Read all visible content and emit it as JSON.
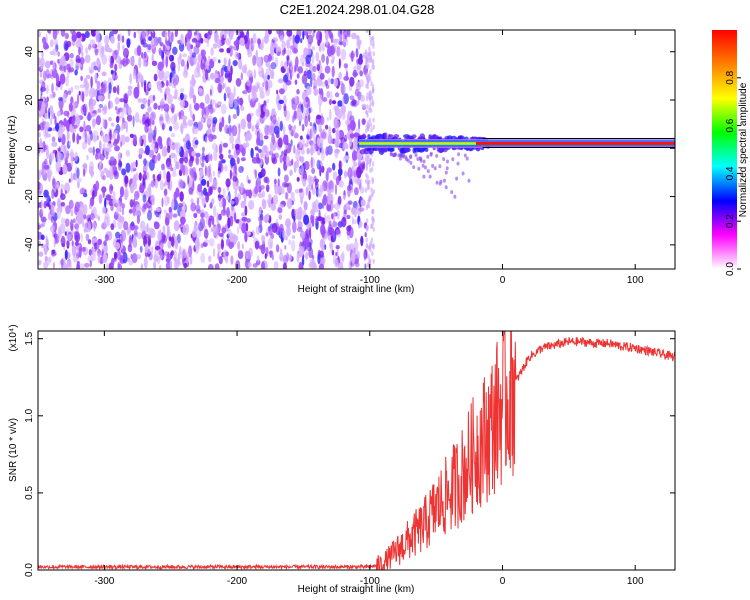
{
  "title": "C2E1.2024.298.01.04.G28",
  "chart_data": [
    {
      "type": "heatmap",
      "xlabel": "Height of straight line (km)",
      "ylabel": "Frequency (Hz)",
      "xlim": [
        -350,
        130
      ],
      "ylim": [
        -50,
        49
      ],
      "x_ticks": [
        -300,
        -200,
        -100,
        0,
        100
      ],
      "y_ticks": [
        -40,
        -20,
        0,
        20,
        40
      ],
      "colorbar": {
        "label": "Normalized spectral amplitude",
        "ticks": [
          0.0,
          0.2,
          0.4,
          0.6,
          0.8
        ],
        "range": [
          0.0,
          1.0
        ],
        "colors": [
          "#ffffff",
          "#ff00ff",
          "#0000ff",
          "#00ffff",
          "#00ff00",
          "#ffff00",
          "#ff8000",
          "#ff0000"
        ]
      },
      "features": {
        "noise_region_x": [
          -350,
          -103
        ],
        "carrier_start_x": -108,
        "carrier_frequency_hz": 2,
        "carrier_end_x": 130
      }
    },
    {
      "type": "line",
      "xlabel": "Height of straight line (km)",
      "ylabel": "SNR (10 * v/v)",
      "scale_label": "(x10⁴)",
      "xlim": [
        -350,
        130
      ],
      "ylim": [
        0,
        1.55
      ],
      "x_ticks": [
        -300,
        -200,
        -100,
        0,
        100
      ],
      "y_ticks": [
        0.0,
        0.5,
        1.0,
        1.5
      ],
      "color": "#ee3333",
      "x": [
        -350,
        -300,
        -250,
        -200,
        -150,
        -100,
        -90,
        -80,
        -70,
        -60,
        -50,
        -40,
        -30,
        -20,
        -10,
        0,
        10,
        20,
        30,
        40,
        50,
        60,
        70,
        80,
        90,
        100,
        110,
        120,
        130
      ],
      "y": [
        0.02,
        0.02,
        0.02,
        0.02,
        0.02,
        0.02,
        0.04,
        0.12,
        0.2,
        0.28,
        0.4,
        0.5,
        0.62,
        0.78,
        0.9,
        1.08,
        1.22,
        1.38,
        1.44,
        1.46,
        1.48,
        1.48,
        1.47,
        1.47,
        1.45,
        1.44,
        1.42,
        1.4,
        1.38
      ]
    }
  ]
}
